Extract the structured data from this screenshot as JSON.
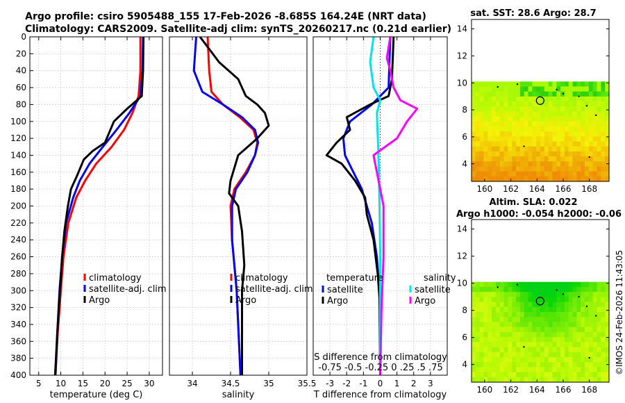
{
  "header": {
    "line1": "Argo profile: csiro 5905488_155 17-Feb-2026 -8.685S 164.24E (NRT data)",
    "line2": "Climatology: CARS2009. Satellite-adj clim: synTS_20260217.nc (0.21d earlier)"
  },
  "side_stamp": "©IMOS 24-Feb-2026 11:43:05",
  "colors": {
    "climatology": "#ff0000",
    "satellite": "#0000ff",
    "argo": "#000000",
    "sal_satellite": "#00e5ee",
    "sal_argo": "#ff00ff",
    "grid": "#d0d0d0"
  },
  "chart_data": [
    {
      "id": "temperature",
      "type": "line",
      "xlabel": "temperature (deg C)",
      "ylabel": "",
      "xlim": [
        3,
        33
      ],
      "ylim": [
        400,
        0
      ],
      "xticks": [
        5,
        10,
        15,
        20,
        25,
        30
      ],
      "yticks": [
        0,
        20,
        40,
        60,
        80,
        100,
        120,
        140,
        160,
        180,
        200,
        220,
        240,
        260,
        280,
        300,
        320,
        340,
        360,
        380,
        400
      ],
      "legend": {
        "position": "center-right",
        "labels": [
          "climatology",
          "satellite-adj. clim",
          "Argo"
        ]
      },
      "series": [
        {
          "name": "climatology",
          "color": "#ff0000",
          "depth": [
            0,
            40,
            70,
            90,
            110,
            130,
            150,
            170,
            190,
            220,
            260,
            300,
            350,
            400
          ],
          "values": [
            28.0,
            28.0,
            27.6,
            26.2,
            24.3,
            21.5,
            18.0,
            15.5,
            13.5,
            11.7,
            10.6,
            10.0,
            9.3,
            8.8
          ]
        },
        {
          "name": "satellite-adj. clim",
          "color": "#0000ff",
          "depth": [
            0,
            40,
            70,
            90,
            110,
            130,
            150,
            170,
            190,
            220,
            260,
            300,
            350,
            400
          ],
          "values": [
            28.6,
            28.5,
            28.0,
            25.5,
            22.6,
            19.5,
            16.5,
            14.3,
            12.8,
            11.2,
            10.3,
            9.7,
            9.2,
            8.8
          ]
        },
        {
          "name": "Argo",
          "color": "#000000",
          "depth": [
            0,
            40,
            70,
            85,
            100,
            110,
            125,
            135,
            145,
            165,
            180,
            200,
            230,
            260,
            300,
            350,
            400
          ],
          "values": [
            28.7,
            28.6,
            28.3,
            25.0,
            22.0,
            21.2,
            20.0,
            17.2,
            15.2,
            13.6,
            12.3,
            11.6,
            10.8,
            10.3,
            9.8,
            9.2,
            8.7
          ]
        }
      ]
    },
    {
      "id": "salinity",
      "type": "line",
      "xlabel": "salinity",
      "ylabel": "",
      "xlim": [
        33.7,
        35.5
      ],
      "ylim": [
        400,
        0
      ],
      "xticks": [
        34,
        34.5,
        35,
        35.5
      ],
      "legend": {
        "position": "center-right",
        "labels": [
          "climatology",
          "satellite-adj. clim",
          "Argo"
        ]
      },
      "series": [
        {
          "name": "climatology",
          "color": "#ff0000",
          "depth": [
            0,
            40,
            65,
            80,
            95,
            110,
            125,
            140,
            160,
            180,
            200,
            240,
            300,
            400
          ],
          "values": [
            34.2,
            34.22,
            34.25,
            34.4,
            34.62,
            34.8,
            34.85,
            34.82,
            34.7,
            34.55,
            34.5,
            34.52,
            34.58,
            34.63
          ]
        },
        {
          "name": "satellite-adj. clim",
          "color": "#0000ff",
          "depth": [
            0,
            40,
            65,
            80,
            95,
            110,
            125,
            140,
            160,
            180,
            200,
            240,
            300,
            400
          ],
          "values": [
            34.05,
            34.02,
            34.13,
            34.4,
            34.65,
            34.82,
            34.86,
            34.82,
            34.72,
            34.57,
            34.52,
            34.52,
            34.58,
            34.63
          ]
        },
        {
          "name": "Argo",
          "color": "#000000",
          "depth": [
            0,
            30,
            50,
            70,
            80,
            90,
            105,
            120,
            140,
            155,
            170,
            185,
            200,
            230,
            270,
            300,
            400
          ],
          "values": [
            34.1,
            34.35,
            34.6,
            34.7,
            34.85,
            34.95,
            35.0,
            34.85,
            34.6,
            34.55,
            34.5,
            34.48,
            34.6,
            34.65,
            34.68,
            34.65,
            34.65
          ]
        }
      ]
    },
    {
      "id": "difference",
      "type": "line",
      "xlabel": "T difference from climatology",
      "top_label": "S difference from climatology",
      "top_ticks": [
        -0.75,
        -0.5,
        -0.25,
        0,
        0.25,
        0.5,
        0.75
      ],
      "xlim": [
        -4,
        4
      ],
      "ylim": [
        400,
        0
      ],
      "xticks": [
        -3,
        -2,
        -1,
        0,
        1,
        2,
        3
      ],
      "legend": {
        "position": "center",
        "temperature_title": "temperature",
        "salinity_title": "salinity",
        "temperature_labels": [
          "satellite",
          "Argo"
        ],
        "salinity_labels": [
          "satellite",
          "Argo"
        ]
      },
      "series": [
        {
          "name": "temperature satellite",
          "color": "#0000ff",
          "depth": [
            0,
            60,
            80,
            100,
            120,
            140,
            160,
            180,
            200,
            220,
            260,
            300,
            400
          ],
          "values": [
            0.6,
            0.5,
            -0.5,
            -1.8,
            -2.2,
            -2.1,
            -1.6,
            -1.1,
            -0.8,
            -0.5,
            -0.2,
            -0.05,
            0
          ]
        },
        {
          "name": "temperature Argo",
          "color": "#000000",
          "depth": [
            0,
            50,
            70,
            80,
            95,
            110,
            125,
            140,
            150,
            170,
            190,
            210,
            240,
            280,
            320,
            400
          ],
          "values": [
            0.8,
            0.7,
            0.5,
            -0.6,
            -2.0,
            -1.8,
            -2.6,
            -3.2,
            -2.3,
            -1.5,
            -0.9,
            -0.8,
            -0.4,
            -0.15,
            0,
            0
          ]
        },
        {
          "name": "salinity satellite",
          "color": "#00e5ee",
          "depth": [
            0,
            30,
            60,
            75,
            90,
            110,
            130,
            160,
            200,
            260,
            320,
            400
          ],
          "values": [
            -0.1,
            -0.15,
            -0.1,
            0.0,
            -0.05,
            -0.04,
            -0.03,
            -0.02,
            -0.01,
            0,
            0,
            0
          ]
        },
        {
          "name": "salinity Argo",
          "color": "#ff00ff",
          "depth": [
            0,
            25,
            40,
            60,
            75,
            85,
            100,
            120,
            140,
            160,
            200,
            260,
            320,
            400
          ],
          "values": [
            0.15,
            0.1,
            0.15,
            0.2,
            0.3,
            0.55,
            0.4,
            0.25,
            -0.1,
            -0.05,
            0.05,
            0.05,
            0.02,
            0.0
          ]
        }
      ]
    },
    {
      "id": "sst_map",
      "type": "heatmap",
      "title": "sat. SST: 28.6 Argo: 28.7",
      "xlim": [
        159,
        169.5
      ],
      "ylim": [
        2.7,
        14.7
      ],
      "xticks": [
        160,
        162,
        164,
        166,
        168
      ],
      "yticks": [
        4,
        6,
        8,
        10,
        12,
        14
      ],
      "data_top_lat": 10.1,
      "argo_marker": {
        "lon": 164.24,
        "lat": 8.685
      }
    },
    {
      "id": "sla_map",
      "type": "heatmap",
      "title": "Altim. SLA: 0.022",
      "subtitle": "Argo h1000: -0.054 h2000: -0.06",
      "xlim": [
        159,
        169.5
      ],
      "ylim": [
        2.7,
        14.7
      ],
      "xticks": [
        160,
        162,
        164,
        166,
        168
      ],
      "yticks": [
        4,
        6,
        8,
        10,
        12,
        14
      ],
      "data_top_lat": 10.1,
      "argo_marker": {
        "lon": 164.24,
        "lat": 8.685
      }
    }
  ]
}
